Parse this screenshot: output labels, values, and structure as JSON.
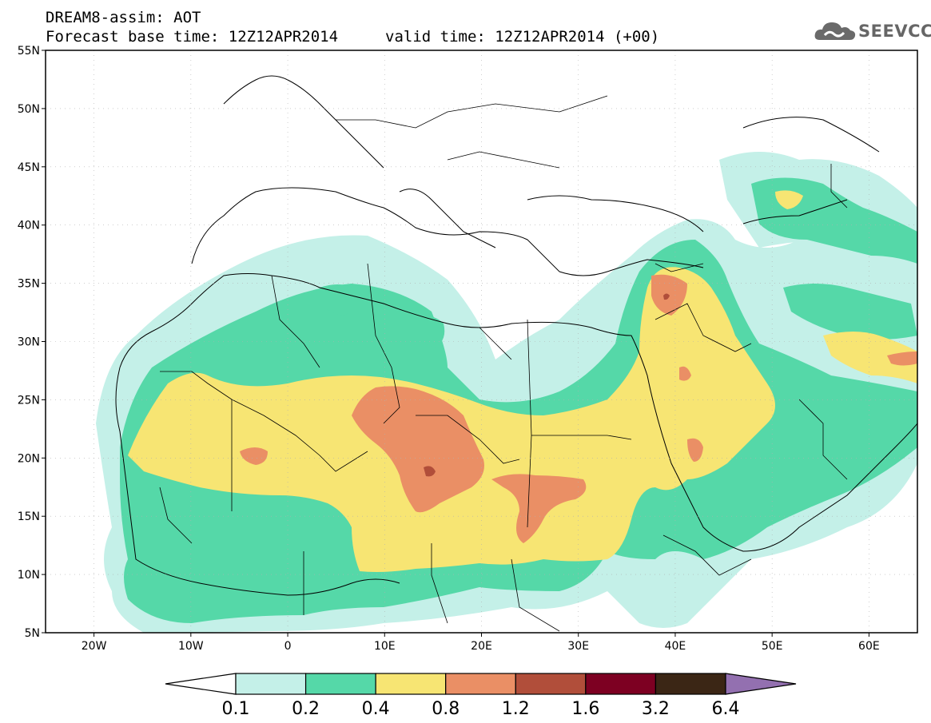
{
  "header": {
    "model_title": "DREAM8-assim: AOT",
    "base_time": "Forecast base time: 12Z12APR2014",
    "valid_time": "valid time: 12Z12APR2014 (+00)"
  },
  "logo": {
    "text": "SEEVCCC",
    "icon": "cloud-icon",
    "color": "#666666"
  },
  "map": {
    "lon_range": [
      -25,
      65
    ],
    "lat_range": [
      5,
      55
    ],
    "lat_ticks": [
      {
        "value": 55,
        "label": "55N"
      },
      {
        "value": 50,
        "label": "50N"
      },
      {
        "value": 45,
        "label": "45N"
      },
      {
        "value": 40,
        "label": "40N"
      },
      {
        "value": 35,
        "label": "35N"
      },
      {
        "value": 30,
        "label": "30N"
      },
      {
        "value": 25,
        "label": "25N"
      },
      {
        "value": 20,
        "label": "20N"
      },
      {
        "value": 15,
        "label": "15N"
      },
      {
        "value": 10,
        "label": "10N"
      },
      {
        "value": 5,
        "label": "5N"
      }
    ],
    "lon_ticks": [
      {
        "value": -20,
        "label": "20W"
      },
      {
        "value": -10,
        "label": "10W"
      },
      {
        "value": 0,
        "label": "0"
      },
      {
        "value": 10,
        "label": "10E"
      },
      {
        "value": 20,
        "label": "20E"
      },
      {
        "value": 30,
        "label": "30E"
      },
      {
        "value": 40,
        "label": "40E"
      },
      {
        "value": 50,
        "label": "50E"
      },
      {
        "value": 60,
        "label": "60E"
      }
    ]
  },
  "colorbar": {
    "levels": [
      "0.1",
      "0.2",
      "0.4",
      "0.8",
      "1.2",
      "1.6",
      "3.2",
      "6.4"
    ],
    "low_color": "#ffffff",
    "colors": [
      "#c4f0e8",
      "#55d8a8",
      "#f7e573",
      "#ea8f65",
      "#b14e3a",
      "#7d0022",
      "#3b2615"
    ],
    "high_color": "#9370b0"
  }
}
